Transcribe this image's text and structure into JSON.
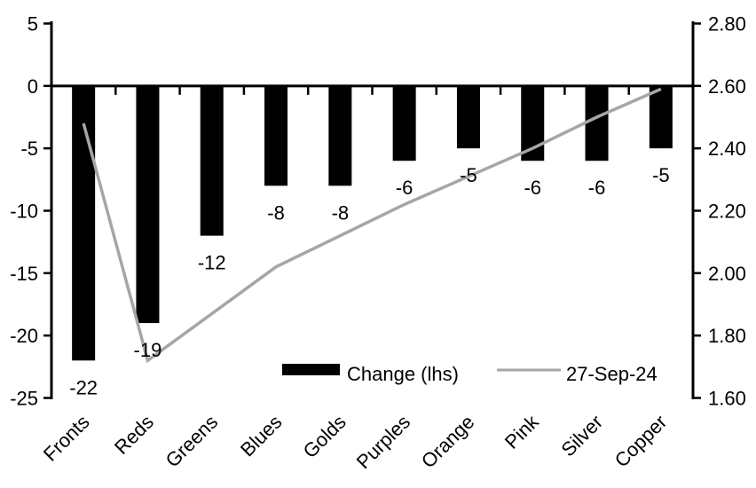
{
  "colors": {
    "background": "#ffffff",
    "bar": "#000000",
    "line": "#a6a6a6",
    "axis": "#000000",
    "text": "#000000"
  },
  "chart_data": {
    "type": "combo",
    "categories": [
      "Fronts",
      "Reds",
      "Greens",
      "Blues",
      "Golds",
      "Purples",
      "Orange",
      "Pink",
      "Silver",
      "Copper"
    ],
    "series": [
      {
        "name": "Change (lhs)",
        "type": "bar",
        "axis": "left",
        "color": "#000000",
        "values": [
          -22,
          -19,
          -12,
          -8,
          -8,
          -6,
          -5,
          -6,
          -6,
          -5
        ],
        "data_labels": [
          "-22",
          "-19",
          "-12",
          "-8",
          "-8",
          "-6",
          "-5",
          "-6",
          "-6",
          "-5"
        ]
      },
      {
        "name": "27-Sep-24",
        "type": "line",
        "axis": "right",
        "color": "#a6a6a6",
        "values": [
          2.48,
          1.72,
          1.87,
          2.02,
          2.12,
          2.22,
          2.31,
          2.4,
          2.5,
          2.59
        ]
      }
    ],
    "left_axis": {
      "min": -25,
      "max": 5,
      "step": 5,
      "ticks": [
        "5",
        "0",
        "-5",
        "-10",
        "-15",
        "-20",
        "-25"
      ]
    },
    "right_axis": {
      "min": 1.6,
      "max": 2.8,
      "step": 0.2,
      "ticks": [
        "2.80",
        "2.60",
        "2.40",
        "2.20",
        "2.00",
        "1.80",
        "1.60"
      ]
    },
    "title": "",
    "xlabel": "",
    "ylabel": "",
    "grid": false,
    "legend_position": "inside-bottom",
    "legend": [
      {
        "label": "Change (lhs)",
        "swatch": "bar",
        "color": "#000000"
      },
      {
        "label": "27-Sep-24",
        "swatch": "line",
        "color": "#a6a6a6"
      }
    ]
  }
}
